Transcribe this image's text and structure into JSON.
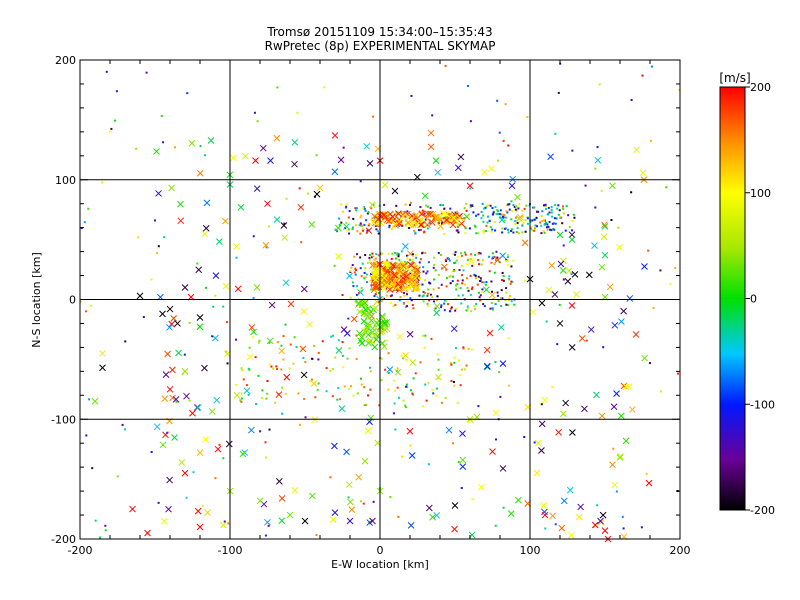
{
  "chart_data": {
    "type": "scatter",
    "title": "Tromsø 20151109 15:34:00–15:35:43",
    "subtitle": "RwPretec (8p) EXPERIMENTAL SKYMAP",
    "xlabel": "E-W location [km]",
    "ylabel": "N-S location [km]",
    "xlim": [
      -200,
      200
    ],
    "ylim": [
      -200,
      200
    ],
    "x_ticks": [
      "-200",
      "-100",
      "0",
      "100",
      "200"
    ],
    "y_ticks": [
      "-200",
      "-100",
      "0",
      "100",
      "200"
    ],
    "grid": true,
    "colorbar": {
      "label": "[m/s]",
      "range": [
        -200,
        200
      ],
      "ticks": [
        "200",
        "100",
        "0",
        "-100",
        "-200"
      ],
      "colormap": "rainbow (black at -200, purple, blue, cyan, green, yellow, orange, red at 200)"
    },
    "marker_types": [
      "cross",
      "dot"
    ],
    "clusters": [
      {
        "marker": "dot",
        "x": [
          -30,
          130
        ],
        "y": [
          55,
          80
        ],
        "v_range": [
          -200,
          200
        ],
        "count": 260
      },
      {
        "marker": "dot",
        "x": [
          -20,
          90
        ],
        "y": [
          -10,
          40
        ],
        "v_range": [
          -200,
          200
        ],
        "count": 340
      },
      {
        "marker": "dot",
        "x": [
          -100,
          60
        ],
        "y": [
          -90,
          -30
        ],
        "v_range": [
          -50,
          200
        ],
        "count": 150
      },
      {
        "marker": "dot",
        "x": [
          -200,
          200
        ],
        "y": [
          -200,
          200
        ],
        "v_range": [
          -200,
          200
        ],
        "count": 220
      },
      {
        "marker": "cross",
        "x": [
          -150,
          180
        ],
        "y": [
          -200,
          140
        ],
        "v_range": [
          -200,
          200
        ],
        "count": 260
      }
    ],
    "points": [
      {
        "x": 175,
        "y": 187,
        "v": 200,
        "m": "dot"
      },
      {
        "x": -30,
        "y": 137,
        "v": 200,
        "m": "cross"
      },
      {
        "x": 34,
        "y": 139,
        "v": 160,
        "m": "cross"
      },
      {
        "x": 0,
        "y": 116,
        "v": 200,
        "m": "cross"
      },
      {
        "x": -83,
        "y": 116,
        "v": 200,
        "m": "cross"
      },
      {
        "x": -73,
        "y": 116,
        "v": -110,
        "m": "cross"
      },
      {
        "x": -57,
        "y": 113,
        "v": -170,
        "m": "cross"
      },
      {
        "x": 60,
        "y": 95,
        "v": 200,
        "m": "cross"
      },
      {
        "x": -100,
        "y": 96,
        "v": -20,
        "m": "cross"
      },
      {
        "x": 88,
        "y": 95,
        "v": -120,
        "m": "cross"
      },
      {
        "x": 155,
        "y": 95,
        "v": 30,
        "m": "cross"
      },
      {
        "x": -42,
        "y": 88,
        "v": -200,
        "m": "cross"
      },
      {
        "x": -75,
        "y": 80,
        "v": 200,
        "m": "cross"
      },
      {
        "x": -150,
        "y": 66,
        "v": -140,
        "m": "dot"
      },
      {
        "x": 120,
        "y": 54,
        "v": -10,
        "m": "cross"
      },
      {
        "x": 150,
        "y": 61,
        "v": -10,
        "m": "cross"
      },
      {
        "x": 143,
        "y": 45,
        "v": -40,
        "m": "cross"
      },
      {
        "x": 150,
        "y": 37,
        "v": -20,
        "m": "cross"
      },
      {
        "x": 128,
        "y": 50,
        "v": -10,
        "m": "cross"
      },
      {
        "x": 130,
        "y": 21,
        "v": -200,
        "m": "cross"
      },
      {
        "x": 148,
        "y": 27,
        "v": 30,
        "m": "cross"
      },
      {
        "x": 150,
        "y": 2,
        "v": 30,
        "m": "cross"
      },
      {
        "x": 100,
        "y": 17,
        "v": -200,
        "m": "cross"
      },
      {
        "x": -130,
        "y": 10,
        "v": -180,
        "m": "cross"
      },
      {
        "x": -160,
        "y": 3,
        "v": -200,
        "m": "cross"
      },
      {
        "x": -126,
        "y": 2,
        "v": 200,
        "m": "cross"
      },
      {
        "x": -140,
        "y": -8,
        "v": -200,
        "m": "cross"
      },
      {
        "x": -145,
        "y": -12,
        "v": -200,
        "m": "cross"
      },
      {
        "x": -135,
        "y": -20,
        "v": -200,
        "m": "cross"
      },
      {
        "x": -120,
        "y": -15,
        "v": -200,
        "m": "cross"
      },
      {
        "x": -185,
        "y": -57,
        "v": -200,
        "m": "cross"
      },
      {
        "x": -185,
        "y": -45,
        "v": 110,
        "m": "cross"
      },
      {
        "x": -190,
        "y": -85,
        "v": 30,
        "m": "cross"
      },
      {
        "x": -130,
        "y": -60,
        "v": 40,
        "m": "cross"
      },
      {
        "x": -140,
        "y": -75,
        "v": 200,
        "m": "cross"
      },
      {
        "x": -125,
        "y": -95,
        "v": 200,
        "m": "cross"
      },
      {
        "x": -143,
        "y": -113,
        "v": 200,
        "m": "cross"
      },
      {
        "x": -108,
        "y": -125,
        "v": 200,
        "m": "cross"
      },
      {
        "x": -120,
        "y": -128,
        "v": 130,
        "m": "cross"
      },
      {
        "x": -130,
        "y": -145,
        "v": 200,
        "m": "cross"
      },
      {
        "x": -100,
        "y": -160,
        "v": 40,
        "m": "cross"
      },
      {
        "x": -115,
        "y": -178,
        "v": 120,
        "m": "cross"
      },
      {
        "x": -165,
        "y": -175,
        "v": 200,
        "m": "cross"
      },
      {
        "x": -155,
        "y": -195,
        "v": 200,
        "m": "cross"
      },
      {
        "x": -120,
        "y": -190,
        "v": 200,
        "m": "cross"
      },
      {
        "x": -80,
        "y": -168,
        "v": 30,
        "m": "cross"
      },
      {
        "x": -60,
        "y": -180,
        "v": 30,
        "m": "cross"
      },
      {
        "x": -50,
        "y": -185,
        "v": -200,
        "m": "cross"
      },
      {
        "x": -30,
        "y": -178,
        "v": -110,
        "m": "cross"
      },
      {
        "x": -20,
        "y": -185,
        "v": -130,
        "m": "cross"
      },
      {
        "x": -5,
        "y": -185,
        "v": -160,
        "m": "cross"
      },
      {
        "x": 50,
        "y": -172,
        "v": -200,
        "m": "cross"
      },
      {
        "x": 110,
        "y": -180,
        "v": 200,
        "m": "cross"
      },
      {
        "x": 147,
        "y": -185,
        "v": -130,
        "m": "cross"
      },
      {
        "x": 150,
        "y": -193,
        "v": 200,
        "m": "cross"
      },
      {
        "x": 152,
        "y": -200,
        "v": 200,
        "m": "cross"
      },
      {
        "x": 155,
        "y": -138,
        "v": 150,
        "m": "cross"
      },
      {
        "x": 160,
        "y": -132,
        "v": 40,
        "m": "cross"
      },
      {
        "x": 55,
        "y": -112,
        "v": -120,
        "m": "cross"
      },
      {
        "x": 75,
        "y": -127,
        "v": 200,
        "m": "cross"
      },
      {
        "x": 20,
        "y": -110,
        "v": 200,
        "m": "cross"
      },
      {
        "x": 0,
        "y": -160,
        "v": 40,
        "m": "cross"
      },
      {
        "x": -10,
        "y": -135,
        "v": 40,
        "m": "cross"
      },
      {
        "x": 60,
        "y": -100,
        "v": 60,
        "m": "cross"
      },
      {
        "x": 120,
        "y": -20,
        "v": -200,
        "m": "cross"
      },
      {
        "x": 108,
        "y": -3,
        "v": -200,
        "m": "cross"
      },
      {
        "x": 128,
        "y": -5,
        "v": 200,
        "m": "cross"
      }
    ]
  }
}
